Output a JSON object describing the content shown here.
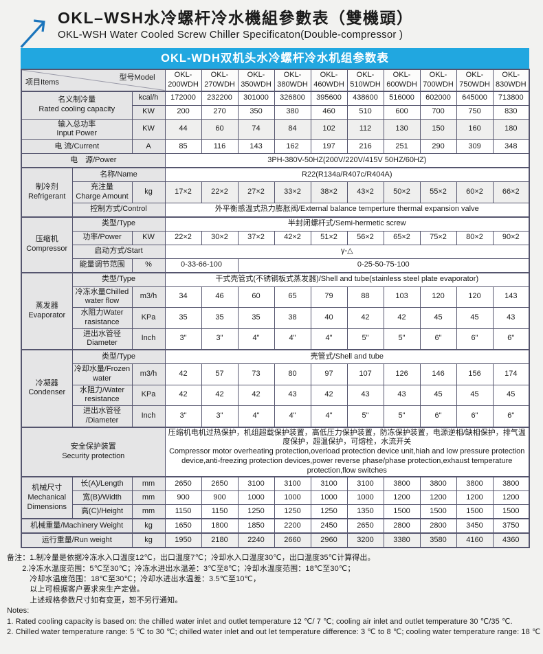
{
  "page": {
    "title_cn": "OKL–WSH水冷螺杆冷水機組參數表（雙機頭）",
    "title_en": "OKL-WSH Water Cooled Screw Chiller Specificaton(Double-compressor )"
  },
  "colors": {
    "banner_bg": "#21a7e0",
    "banner_text": "#ffffff",
    "table_border": "#55556e",
    "label_cell_bg": "#e5e5e6",
    "logo_blue": "#1b75bc",
    "page_bg": "#f2f2f0"
  },
  "banner": {
    "text": "OKL-WDH双机头水冷螺杆冷水机组参数表"
  },
  "table": {
    "corner": {
      "left": "项目Items",
      "right": "型号Model"
    },
    "model_prefix": "OKL-",
    "models": [
      "200WDH",
      "270WDH",
      "350WDH",
      "380WDH",
      "460WDH",
      "510WDH",
      "600WDH",
      "700WDH",
      "750WDH",
      "830WDH"
    ],
    "rows": [
      {
        "cells": [
          {
            "t": [
              "名义制冷量",
              "Rated cooling capacity"
            ],
            "c": "lbl",
            "cs": 2,
            "rs": 2
          },
          {
            "t": [
              "kcal/h"
            ],
            "c": "unit"
          },
          {
            "c": "vals",
            "vals": [
              "172000",
              "232200",
              "301000",
              "326800",
              "395600",
              "438600",
              "516000",
              "602000",
              "645000",
              "713800"
            ]
          }
        ]
      },
      {
        "cells": [
          {
            "t": [
              "KW"
            ],
            "c": "unit"
          },
          {
            "c": "vals",
            "vals": [
              "200",
              "270",
              "350",
              "380",
              "460",
              "510",
              "600",
              "700",
              "750",
              "830"
            ]
          }
        ]
      },
      {
        "tint": true,
        "cells": [
          {
            "t": [
              "输入总功率",
              "Input Power"
            ],
            "c": "lbl",
            "cs": 2
          },
          {
            "t": [
              "KW"
            ],
            "c": "unit"
          },
          {
            "c": "vals",
            "vals": [
              "44",
              "60",
              "74",
              "84",
              "102",
              "112",
              "130",
              "150",
              "160",
              "180"
            ]
          }
        ]
      },
      {
        "cells": [
          {
            "t": [
              "电 流/Current"
            ],
            "c": "lbl",
            "cs": 2
          },
          {
            "t": [
              "A"
            ],
            "c": "unit"
          },
          {
            "c": "vals",
            "vals": [
              "85",
              "116",
              "143",
              "162",
              "197",
              "216",
              "251",
              "290",
              "309",
              "348"
            ]
          }
        ]
      },
      {
        "cells": [
          {
            "t": [
              "电　源/Power"
            ],
            "c": "lbl",
            "cs": 3
          },
          {
            "t": [
              "3PH-380V-50HZ(200V/220V/415V  50HZ/60HZ)"
            ],
            "c": "span",
            "cs": 10
          }
        ]
      },
      {
        "sec": true,
        "cells": [
          {
            "t": [
              "制冷剂",
              "Refrigerant"
            ],
            "c": "lbl",
            "rs": 3
          },
          {
            "t": [
              "名称/Name"
            ],
            "c": "lbl",
            "cs": 2
          },
          {
            "t": [
              "R22(R134a/R407c/R404A)"
            ],
            "c": "span",
            "cs": 10
          }
        ]
      },
      {
        "tint": true,
        "cells": [
          {
            "t": [
              "充注量",
              "Charge Amount"
            ],
            "c": "lbl"
          },
          {
            "t": [
              "kg"
            ],
            "c": "unit"
          },
          {
            "c": "vals",
            "vals": [
              "17×2",
              "22×2",
              "27×2",
              "33×2",
              "38×2",
              "43×2",
              "50×2",
              "55×2",
              "60×2",
              "66×2"
            ]
          }
        ]
      },
      {
        "cells": [
          {
            "t": [
              "控制方式/Control"
            ],
            "c": "lbl",
            "cs": 2
          },
          {
            "t": [
              "外平衡感温式热力膨胀阀/External balance temperture thermal expansion valve"
            ],
            "c": "span",
            "cs": 10
          }
        ]
      },
      {
        "sec": true,
        "cells": [
          {
            "t": [
              "压缩机",
              "Compressor"
            ],
            "c": "lbl",
            "rs": 4
          },
          {
            "t": [
              "类型/Type"
            ],
            "c": "lbl",
            "cs": 2
          },
          {
            "t": [
              "半封闭螺杆式/Semi-hermetic screw"
            ],
            "c": "span",
            "cs": 10
          }
        ]
      },
      {
        "cells": [
          {
            "t": [
              "功率/Power"
            ],
            "c": "lbl"
          },
          {
            "t": [
              "KW"
            ],
            "c": "unit"
          },
          {
            "c": "vals",
            "vals": [
              "22×2",
              "30×2",
              "37×2",
              "42×2",
              "51×2",
              "56×2",
              "65×2",
              "75×2",
              "80×2",
              "90×2"
            ]
          }
        ]
      },
      {
        "cells": [
          {
            "t": [
              "启动方式/Start"
            ],
            "c": "lbl",
            "cs": 2
          },
          {
            "t": [
              "γ-△"
            ],
            "c": "span",
            "cs": 10
          }
        ]
      },
      {
        "cells": [
          {
            "t": [
              "能量调节范围"
            ],
            "c": "lbl"
          },
          {
            "t": [
              "%"
            ],
            "c": "unit"
          },
          {
            "t": [
              "0-33-66-100"
            ],
            "c": "span",
            "cs": 2
          },
          {
            "t": [
              "0-25-50-75-100"
            ],
            "c": "span",
            "cs": 8
          }
        ]
      },
      {
        "sec": true,
        "cells": [
          {
            "t": [
              "蒸发器",
              "Evaporator"
            ],
            "c": "lbl",
            "rs": 4
          },
          {
            "t": [
              "类型/Type"
            ],
            "c": "lbl",
            "cs": 2
          },
          {
            "t": [
              "干式壳管式(不锈钢板式蒸发器)/Shell and tube(stainless steel plate evaporator)"
            ],
            "c": "span",
            "cs": 10
          }
        ]
      },
      {
        "cells": [
          {
            "t": [
              "冷冻水量Chilled",
              "water flow"
            ],
            "c": "lbl"
          },
          {
            "t": [
              "m3/h"
            ],
            "c": "unit"
          },
          {
            "c": "vals",
            "vals": [
              "34",
              "46",
              "60",
              "65",
              "79",
              "88",
              "103",
              "120",
              "120",
              "143"
            ]
          }
        ]
      },
      {
        "cells": [
          {
            "t": [
              "水阻力Water",
              "rasistance"
            ],
            "c": "lbl"
          },
          {
            "t": [
              "KPa"
            ],
            "c": "unit"
          },
          {
            "c": "vals",
            "vals": [
              "35",
              "35",
              "35",
              "38",
              "40",
              "42",
              "42",
              "45",
              "45",
              "43"
            ]
          }
        ]
      },
      {
        "cells": [
          {
            "t": [
              "进出水管径",
              "Diameter"
            ],
            "c": "lbl"
          },
          {
            "t": [
              "Inch"
            ],
            "c": "unit"
          },
          {
            "c": "vals",
            "vals": [
              "3\"",
              "3\"",
              "4\"",
              "4\"",
              "4\"",
              "5\"",
              "5\"",
              "6\"",
              "6\"",
              "6\""
            ]
          }
        ]
      },
      {
        "sec": true,
        "cells": [
          {
            "t": [
              "冷凝器",
              "Condenser"
            ],
            "c": "lbl",
            "rs": 4
          },
          {
            "t": [
              "类型/Type"
            ],
            "c": "lbl",
            "cs": 2
          },
          {
            "t": [
              "壳管式/Shell and tube"
            ],
            "c": "span",
            "cs": 10
          }
        ]
      },
      {
        "cells": [
          {
            "t": [
              "冷却水量/Frozen",
              "water"
            ],
            "c": "lbl"
          },
          {
            "t": [
              "m3/h"
            ],
            "c": "unit"
          },
          {
            "c": "vals",
            "vals": [
              "42",
              "57",
              "73",
              "80",
              "97",
              "107",
              "126",
              "146",
              "156",
              "174"
            ]
          }
        ]
      },
      {
        "cells": [
          {
            "t": [
              "水阻力/Water",
              "resistance"
            ],
            "c": "lbl"
          },
          {
            "t": [
              "KPa"
            ],
            "c": "unit"
          },
          {
            "c": "vals",
            "vals": [
              "42",
              "42",
              "42",
              "43",
              "42",
              "43",
              "43",
              "45",
              "45",
              "45"
            ]
          }
        ]
      },
      {
        "cells": [
          {
            "t": [
              "进出水管径",
              "/Diameter"
            ],
            "c": "lbl"
          },
          {
            "t": [
              "Inch"
            ],
            "c": "unit"
          },
          {
            "c": "vals",
            "vals": [
              "3\"",
              "3\"",
              "4\"",
              "4\"",
              "4\"",
              "5\"",
              "5\"",
              "6\"",
              "6\"",
              "6\""
            ]
          }
        ]
      },
      {
        "sec": true,
        "cells": [
          {
            "t": [
              "安全保护装置",
              "Security protection"
            ],
            "c": "lbl",
            "cs": 3
          },
          {
            "t": [
              "压缩机电机过热保护，机组超载保护装置，高低压力保护装置，防冻保护装置，电源逆相/缺相保护，排气温度保护，超温保护，可熔栓，水流开关",
              "Compressor motor overheating protection,overload protection device unit,hiah and low pressure protection device,anti-freezing protection devices,power reverse phase/phase protection,exhaust temperature protection,flow switches"
            ],
            "c": "vleft",
            "cs": 10
          }
        ]
      },
      {
        "sec": true,
        "cells": [
          {
            "t": [
              "机械尺寸",
              "Mechanical",
              "Dimensions"
            ],
            "c": "lbl",
            "rs": 3
          },
          {
            "t": [
              "长(A)/Length"
            ],
            "c": "lbl"
          },
          {
            "t": [
              "mm"
            ],
            "c": "unit"
          },
          {
            "c": "vals",
            "vals": [
              "2650",
              "2650",
              "3100",
              "3100",
              "3100",
              "3100",
              "3800",
              "3800",
              "3800",
              "3800"
            ]
          }
        ]
      },
      {
        "cells": [
          {
            "t": [
              "宽(B)/Width"
            ],
            "c": "lbl"
          },
          {
            "t": [
              "mm"
            ],
            "c": "unit"
          },
          {
            "c": "vals",
            "vals": [
              "900",
              "900",
              "1000",
              "1000",
              "1000",
              "1000",
              "1200",
              "1200",
              "1200",
              "1200"
            ]
          }
        ]
      },
      {
        "cells": [
          {
            "t": [
              "高(C)/Height"
            ],
            "c": "lbl"
          },
          {
            "t": [
              "mm"
            ],
            "c": "unit"
          },
          {
            "c": "vals",
            "vals": [
              "1150",
              "1150",
              "1250",
              "1250",
              "1250",
              "1350",
              "1500",
              "1500",
              "1500",
              "1500"
            ]
          }
        ]
      },
      {
        "sec": true,
        "cells": [
          {
            "t": [
              "机械重量/Machinery Weight"
            ],
            "c": "lbl",
            "cs": 2
          },
          {
            "t": [
              "kg"
            ],
            "c": "unit"
          },
          {
            "c": "vals",
            "vals": [
              "1650",
              "1800",
              "1850",
              "2200",
              "2450",
              "2650",
              "2800",
              "2800",
              "3450",
              "3750"
            ]
          }
        ]
      },
      {
        "sec": true,
        "tint": true,
        "cells": [
          {
            "t": [
              "运行重量/Run weight"
            ],
            "c": "lbl",
            "cs": 2
          },
          {
            "t": [
              "kg"
            ],
            "c": "unit"
          },
          {
            "c": "vals",
            "vals": [
              "1950",
              "2180",
              "2240",
              "2660",
              "2960",
              "3200",
              "3380",
              "3580",
              "4160",
              "4360"
            ]
          }
        ]
      }
    ]
  },
  "notes": {
    "cn_lines": [
      "备注：1.制冷量是依据冷冻水入口温度12℃，出口温度7℃；冷却水入口温度30℃，出口温度35℃计算得出。",
      "　　2.冷冻水温度范围：5℃至30℃；冷冻水进出水温差：3℃至8℃；冷却水温度范围：18℃至30℃；",
      "　　　冷却水温度范围：18℃至30℃；冷却水进出水温差：3.5℃至10℃，",
      "　　　以上可根据客户要求来生产定做。",
      "　　　上述规格参数尺寸如有变更，恕不另行通知。"
    ],
    "en_lines": [
      "Notes:",
      "1. Rated cooling capacity is based on: the chilled water inlet and outlet temperature 12 ℃/ 7 ℃; cooling air inlet and outlet temperature 30 ℃/35 ℃.",
      "2. Chilled water temperature range: 5 ℃ to 30 ℃; chilled water inlet and out let temperature difference: 3 ℃ to 8 ℃; cooling water temperature range: 18 ℃"
    ]
  }
}
